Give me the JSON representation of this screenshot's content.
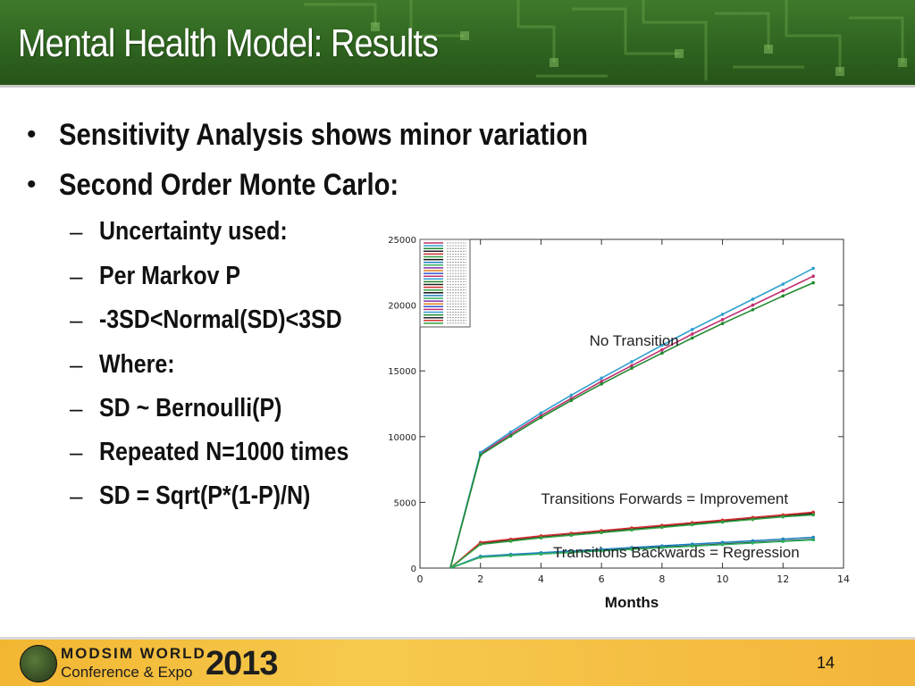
{
  "slide": {
    "title": "Mental Health Model: Results",
    "bullets": [
      {
        "text": "Sensitivity Analysis shows minor variation",
        "level": 1
      },
      {
        "text": "Second Order Monte Carlo:",
        "level": 1
      },
      {
        "text": "Uncertainty used:",
        "level": 2
      },
      {
        "text": "Per Markov P",
        "level": 2
      },
      {
        "text": "-3SD<Normal(SD)<3SD",
        "level": 2
      },
      {
        "text": "Where:",
        "level": 2
      },
      {
        "text": "SD ~ Bernoulli(P)",
        "level": 2
      },
      {
        "text": "Repeated N=1000 times",
        "level": 2
      },
      {
        "text": "SD = Sqrt(P*(1-P)/N)",
        "level": 2
      }
    ],
    "bullet_marker": "•",
    "sub_marker": "–",
    "page_number": "14"
  },
  "footer": {
    "logo_line1": "MODSIM WORLD",
    "logo_line2": "Conference & Expo",
    "logo_year": "2013"
  },
  "chart_data": {
    "type": "line",
    "xlabel": "Months",
    "ylabel": "",
    "xlim": [
      0,
      14
    ],
    "ylim": [
      0,
      25000
    ],
    "xticks": [
      0,
      2,
      4,
      6,
      8,
      10,
      12,
      14
    ],
    "yticks": [
      0,
      5000,
      10000,
      15000,
      20000,
      25000
    ],
    "legend_position": "top-left",
    "annotations": [
      {
        "text": "No Transition",
        "x": 5.6,
        "y": 16900
      },
      {
        "text": "Transitions Forwards = Improvement",
        "x": 4.0,
        "y": 4900
      },
      {
        "text": "Transitions Backwards = Regression",
        "x": 4.4,
        "y": 800
      }
    ],
    "series": [
      {
        "color": "#c03070",
        "x": [
          1,
          2,
          3,
          4,
          5,
          6,
          7,
          8,
          9,
          10,
          11,
          12,
          13
        ],
        "values": [
          0,
          8700,
          10200,
          11600,
          12900,
          14200,
          15400,
          16600,
          17800,
          18900,
          20000,
          21100,
          22200
        ]
      },
      {
        "color": "#30a0d0",
        "x": [
          1,
          2,
          3,
          4,
          5,
          6,
          7,
          8,
          9,
          10,
          11,
          12,
          13
        ],
        "values": [
          0,
          8800,
          10350,
          11800,
          13150,
          14450,
          15700,
          16950,
          18150,
          19300,
          20450,
          21600,
          22800
        ]
      },
      {
        "color": "#208a30",
        "x": [
          1,
          2,
          3,
          4,
          5,
          6,
          7,
          8,
          9,
          10,
          11,
          12,
          13
        ],
        "values": [
          0,
          8600,
          10050,
          11450,
          12750,
          14000,
          15200,
          16350,
          17500,
          18600,
          19650,
          20700,
          21700
        ]
      },
      {
        "color": "#222222",
        "x": [
          1,
          2,
          3,
          4,
          5,
          6,
          7,
          8,
          9,
          10,
          11,
          12,
          13
        ],
        "values": [
          0,
          1850,
          2100,
          2350,
          2550,
          2750,
          2950,
          3150,
          3350,
          3550,
          3750,
          3950,
          4150
        ]
      },
      {
        "color": "#d03030",
        "x": [
          1,
          2,
          3,
          4,
          5,
          6,
          7,
          8,
          9,
          10,
          11,
          12,
          13
        ],
        "values": [
          0,
          1950,
          2200,
          2450,
          2650,
          2850,
          3050,
          3250,
          3450,
          3650,
          3850,
          4050,
          4250
        ]
      },
      {
        "color": "#30a040",
        "x": [
          1,
          2,
          3,
          4,
          5,
          6,
          7,
          8,
          9,
          10,
          11,
          12,
          13
        ],
        "values": [
          0,
          1800,
          2050,
          2300,
          2500,
          2700,
          2900,
          3100,
          3300,
          3500,
          3700,
          3900,
          4050
        ]
      },
      {
        "color": "#111111",
        "x": [
          1,
          2,
          3,
          4,
          5,
          6,
          7,
          8,
          9,
          10,
          11,
          12,
          13
        ],
        "values": [
          0,
          850,
          980,
          1100,
          1220,
          1340,
          1460,
          1580,
          1700,
          1820,
          1940,
          2060,
          2180
        ]
      },
      {
        "color": "#2080c0",
        "x": [
          1,
          2,
          3,
          4,
          5,
          6,
          7,
          8,
          9,
          10,
          11,
          12,
          13
        ],
        "values": [
          0,
          900,
          1040,
          1170,
          1300,
          1430,
          1560,
          1690,
          1820,
          1950,
          2080,
          2210,
          2340
        ]
      },
      {
        "color": "#30b060",
        "x": [
          1,
          2,
          3,
          4,
          5,
          6,
          7,
          8,
          9,
          10,
          11,
          12,
          13
        ],
        "values": [
          0,
          820,
          950,
          1070,
          1190,
          1310,
          1430,
          1550,
          1670,
          1790,
          1910,
          2030,
          2150
        ]
      }
    ]
  }
}
